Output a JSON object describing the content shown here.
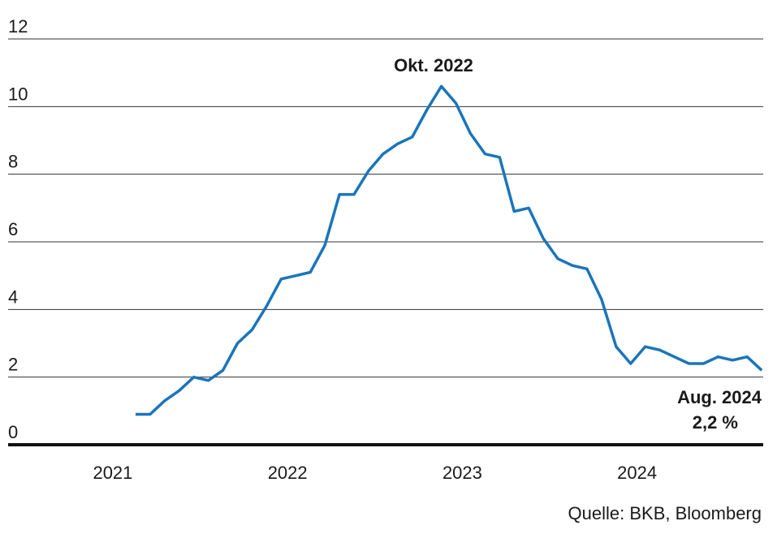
{
  "chart_data": {
    "type": "line",
    "x": [
      0,
      1,
      2,
      3,
      4,
      5,
      6,
      7,
      8,
      9,
      10,
      11,
      12,
      13,
      14,
      15,
      16,
      17,
      18,
      19,
      20,
      21,
      22,
      23,
      24,
      25,
      26,
      27,
      28,
      29,
      30,
      31,
      32,
      33,
      34,
      35,
      36,
      37,
      38,
      39,
      40,
      41,
      42,
      43
    ],
    "series": [
      {
        "color": "#1a75bb",
        "values": [
          0.9,
          0.9,
          1.3,
          1.6,
          2.0,
          1.9,
          2.2,
          3.0,
          3.4,
          4.1,
          4.9,
          5.0,
          5.1,
          5.9,
          7.4,
          7.4,
          8.1,
          8.6,
          8.9,
          9.1,
          9.9,
          10.6,
          10.1,
          9.2,
          8.6,
          8.5,
          6.9,
          7.0,
          6.1,
          5.5,
          5.3,
          5.2,
          4.3,
          2.9,
          2.4,
          2.9,
          2.8,
          2.6,
          2.4,
          2.4,
          2.6,
          2.5,
          2.6,
          2.2
        ]
      }
    ],
    "xlim": [
      -8.75,
      43.1
    ],
    "xticks": [
      {
        "value": 0,
        "label": "2021"
      },
      {
        "value": 12,
        "label": "2022"
      },
      {
        "value": 24,
        "label": "2023"
      },
      {
        "value": 36,
        "label": "2024"
      }
    ],
    "ylim": [
      0,
      12
    ],
    "yticks": [
      0,
      2,
      4,
      6,
      8,
      10,
      12
    ],
    "grid": true,
    "annotations": [
      "Okt. 2022",
      "Aug. 2024",
      "2,2 %"
    ],
    "source": "Quelle: BKB, Bloomberg"
  }
}
